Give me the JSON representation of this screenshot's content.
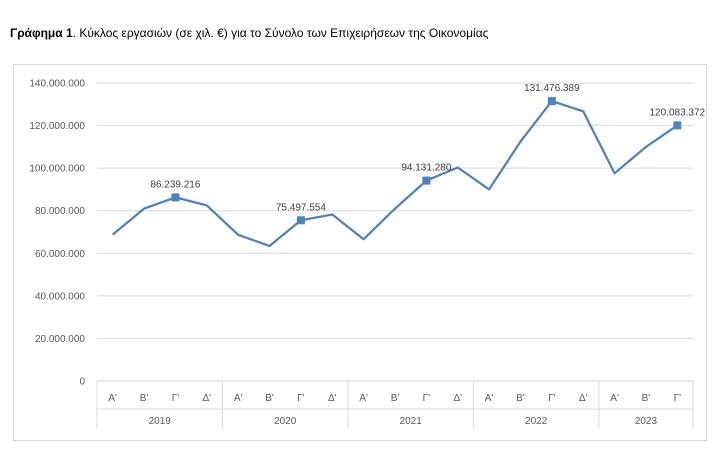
{
  "caption": {
    "label": "Γράφημα 1",
    "text": ". Κύκλος εργασιών (σε χιλ. €) για το Σύνολο των Επιχειρήσεων της Οικονομίας"
  },
  "chart_data": {
    "type": "line",
    "title": "",
    "xlabel": "",
    "ylabel": "",
    "ylim": [
      0,
      140000000
    ],
    "yticks": [
      0,
      20000000,
      40000000,
      60000000,
      80000000,
      100000000,
      120000000,
      140000000
    ],
    "ytick_labels": [
      "0",
      "20.000.000",
      "40.000.000",
      "60.000.000",
      "80.000.000",
      "100.000.000",
      "120.000.000",
      "140.000.000"
    ],
    "grid": true,
    "legend": "none",
    "color": "#4f81bd",
    "groups": [
      {
        "label": "2019",
        "quarters": [
          "Α'",
          "Β'",
          "Γ'",
          "Δ'"
        ]
      },
      {
        "label": "2020",
        "quarters": [
          "Α'",
          "Β'",
          "Γ'",
          "Δ'"
        ]
      },
      {
        "label": "2021",
        "quarters": [
          "Α'",
          "Β'",
          "Γ'",
          "Δ'"
        ]
      },
      {
        "label": "2022",
        "quarters": [
          "Α'",
          "Β'",
          "Γ'",
          "Δ'"
        ]
      },
      {
        "label": "2023",
        "quarters": [
          "Α'",
          "Β'",
          "Γ'"
        ]
      }
    ],
    "series": [
      {
        "values": [
          68800000,
          81000000,
          86239216,
          82500000,
          68700000,
          63400000,
          75497554,
          78200000,
          66600000,
          81000000,
          94131280,
          100300000,
          90000000,
          112500000,
          131476389,
          126700000,
          97600000,
          110000000,
          120083372
        ]
      }
    ],
    "annotations": [
      {
        "index": 2,
        "label": "86.239.216"
      },
      {
        "index": 6,
        "label": "75.497.554"
      },
      {
        "index": 10,
        "label": "94.131.280"
      },
      {
        "index": 14,
        "label": "131.476.389"
      },
      {
        "index": 18,
        "label": "120.083.372"
      }
    ]
  }
}
